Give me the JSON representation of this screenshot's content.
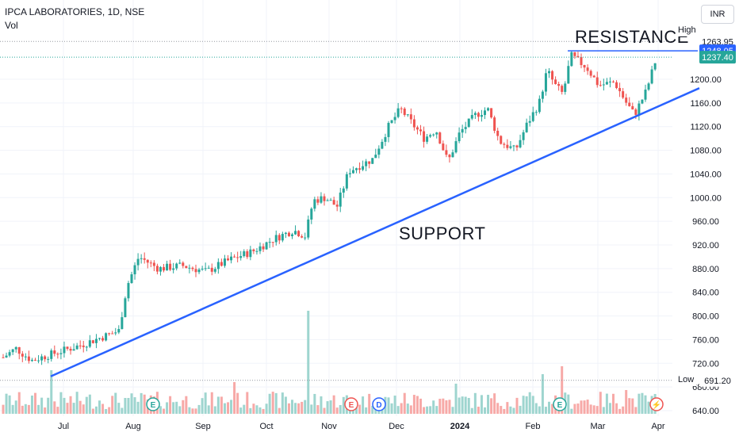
{
  "header": {
    "title": "IPCA LABORATORIES, 1D, NSE",
    "volume_label": "Vol",
    "currency": "INR"
  },
  "annotations": {
    "resistance": "RESISTANCE",
    "support": "SUPPORT"
  },
  "levels": {
    "high_label": "High",
    "high_value": "1263.95",
    "resistance_value": "1248.05",
    "last_value": "1237.40",
    "low_label": "Low",
    "low_value": "691.20"
  },
  "colors": {
    "up": "#26a69a",
    "down": "#ef5350",
    "trendline": "#2962ff",
    "up_volume": "#9ed5cf",
    "down_volume": "#f7a9a7"
  },
  "events": [
    {
      "type": "earnings",
      "symbol": "E",
      "date": "Aug"
    },
    {
      "type": "earnings",
      "symbol": "E",
      "date": "Nov"
    },
    {
      "type": "dividend",
      "symbol": "D",
      "date": "Nov"
    },
    {
      "type": "earnings",
      "symbol": "E",
      "date": "Feb"
    },
    {
      "type": "flash",
      "symbol": "⚡",
      "date": "Apr"
    }
  ],
  "chart_data": {
    "type": "candlestick",
    "title": "IPCA LABORATORIES, 1D, NSE",
    "y_axis_ticks": [
      "640.00",
      "680.00",
      "720.00",
      "760.00",
      "800.00",
      "840.00",
      "880.00",
      "920.00",
      "960.00",
      "1000.00",
      "1040.00",
      "1080.00",
      "1120.00",
      "1160.00",
      "1200.00"
    ],
    "x_axis_ticks": [
      "Jul",
      "Aug",
      "Sep",
      "Oct",
      "Nov",
      "Dec",
      "2024",
      "Feb",
      "Mar",
      "Apr"
    ],
    "ylim": [
      630,
      1275
    ],
    "close_approx": [
      {
        "month": "Jul",
        "close": 735
      },
      {
        "month": "Aug",
        "close": 895
      },
      {
        "month": "Sep",
        "close": 880
      },
      {
        "month": "Oct",
        "close": 940
      },
      {
        "month": "Nov",
        "close": 990
      },
      {
        "month": "Dec",
        "close": 1120
      },
      {
        "month": "2024",
        "close": 1110
      },
      {
        "month": "Feb",
        "close": 1150
      },
      {
        "month": "Mar",
        "close": 1200
      },
      {
        "month": "Apr",
        "close": 1237.4
      }
    ],
    "horizontal_lines": [
      {
        "name": "RESISTANCE",
        "value": 1248.05
      }
    ],
    "trendline": {
      "name": "SUPPORT",
      "points": [
        {
          "x": "late Jun",
          "y": 698
        },
        {
          "x": "Apr",
          "y": 1185
        }
      ]
    },
    "high": 1263.95,
    "low": 691.2,
    "last": 1237.4
  }
}
